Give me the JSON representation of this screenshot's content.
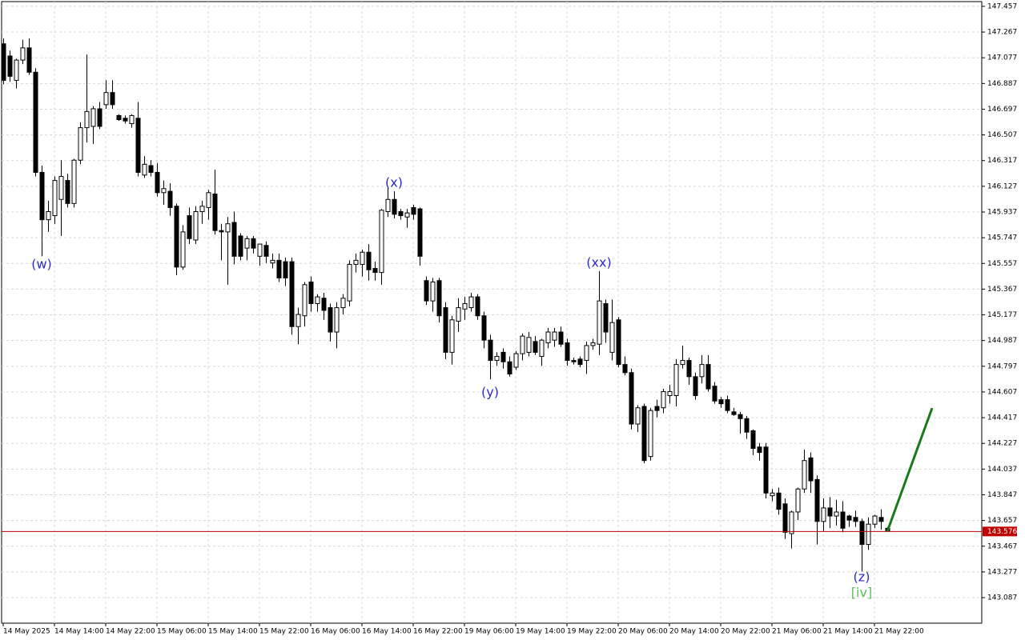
{
  "chart_data": {
    "type": "candlestick",
    "ylim": [
      142.898,
      147.492
    ],
    "yticks": [
      147.457,
      147.267,
      147.077,
      146.887,
      146.697,
      146.507,
      146.317,
      146.127,
      145.937,
      145.747,
      145.557,
      145.367,
      145.177,
      144.987,
      144.797,
      144.607,
      144.417,
      144.227,
      144.037,
      143.847,
      143.657,
      143.467,
      143.277,
      143.087
    ],
    "grid": true,
    "up_color": "#ffffff",
    "down_color": "#000000",
    "categories": [
      "14 May 2025",
      null,
      null,
      null,
      null,
      null,
      null,
      null,
      "14 May 14:00",
      null,
      null,
      null,
      null,
      null,
      null,
      null,
      "14 May 22:00",
      null,
      null,
      null,
      null,
      null,
      null,
      null,
      "15 May 06:00",
      null,
      null,
      null,
      null,
      null,
      null,
      null,
      "15 May 14:00",
      null,
      null,
      null,
      null,
      null,
      null,
      null,
      "15 May 22:00",
      null,
      null,
      null,
      null,
      null,
      null,
      null,
      "16 May 06:00",
      null,
      null,
      null,
      null,
      null,
      null,
      null,
      "16 May 14:00",
      null,
      null,
      null,
      null,
      null,
      null,
      null,
      "16 May 22:00",
      null,
      null,
      null,
      null,
      null,
      null,
      null,
      "19 May 06:00",
      null,
      null,
      null,
      null,
      null,
      null,
      null,
      "19 May 14:00",
      null,
      null,
      null,
      null,
      null,
      null,
      null,
      "19 May 22:00",
      null,
      null,
      null,
      null,
      null,
      null,
      null,
      "20 May 06:00",
      null,
      null,
      null,
      null,
      null,
      null,
      null,
      "20 May 14:00",
      null,
      null,
      null,
      null,
      null,
      null,
      null,
      "20 May 22:00",
      null,
      null,
      null,
      null,
      null,
      null,
      null,
      "21 May 06:00",
      null,
      null,
      null,
      null,
      null,
      null,
      null,
      "21 May 14:00",
      null,
      null,
      null,
      null,
      null,
      null,
      null,
      "21 May 22:00",
      null,
      null
    ],
    "values": [
      [
        147.18,
        147.22,
        146.88,
        146.91
      ],
      [
        147.09,
        147.13,
        146.9,
        146.94
      ],
      [
        146.91,
        147.07,
        146.85,
        147.06
      ],
      [
        147.06,
        147.21,
        147.03,
        147.15
      ],
      [
        147.15,
        147.22,
        146.95,
        146.97
      ],
      [
        146.97,
        147.0,
        146.2,
        146.23
      ],
      [
        146.23,
        146.28,
        145.61,
        145.88
      ],
      [
        145.88,
        146.02,
        145.79,
        145.94
      ],
      [
        145.91,
        146.2,
        145.85,
        146.17
      ],
      [
        146.03,
        146.32,
        145.76,
        146.2
      ],
      [
        146.17,
        146.22,
        145.97,
        146.0
      ],
      [
        146.0,
        146.33,
        145.97,
        146.32
      ],
      [
        146.32,
        146.6,
        146.29,
        146.56
      ],
      [
        146.56,
        147.1,
        146.45,
        146.68
      ],
      [
        146.57,
        146.72,
        146.44,
        146.7
      ],
      [
        146.7,
        146.75,
        146.55,
        146.57
      ],
      [
        146.73,
        146.91,
        146.7,
        146.82
      ],
      [
        146.82,
        146.91,
        146.7,
        146.73
      ],
      [
        146.65,
        146.66,
        146.61,
        146.62
      ],
      [
        146.63,
        146.65,
        146.59,
        146.61
      ],
      [
        146.59,
        146.66,
        146.56,
        146.65
      ],
      [
        146.63,
        146.75,
        146.2,
        146.23
      ],
      [
        146.21,
        146.35,
        146.19,
        146.29
      ],
      [
        146.28,
        146.32,
        146.2,
        146.23
      ],
      [
        146.23,
        146.3,
        146.05,
        146.08
      ],
      [
        146.08,
        146.17,
        145.99,
        146.11
      ],
      [
        146.09,
        146.15,
        145.91,
        145.97
      ],
      [
        145.98,
        146.0,
        145.47,
        145.53
      ],
      [
        145.53,
        145.84,
        145.51,
        145.79
      ],
      [
        145.91,
        145.97,
        145.7,
        145.74
      ],
      [
        145.73,
        145.98,
        145.7,
        145.94
      ],
      [
        145.94,
        146.02,
        145.85,
        145.98
      ],
      [
        145.97,
        146.1,
        145.88,
        146.08
      ],
      [
        146.07,
        146.25,
        145.77,
        145.8
      ],
      [
        145.8,
        145.85,
        145.58,
        145.79
      ],
      [
        145.79,
        145.9,
        145.4,
        145.85
      ],
      [
        145.86,
        145.94,
        145.55,
        145.61
      ],
      [
        145.76,
        145.78,
        145.58,
        145.61
      ],
      [
        145.67,
        145.76,
        145.58,
        145.74
      ],
      [
        145.74,
        145.76,
        145.63,
        145.67
      ],
      [
        145.61,
        145.7,
        145.54,
        145.7
      ],
      [
        145.69,
        145.72,
        145.56,
        145.61
      ],
      [
        145.56,
        145.63,
        145.52,
        145.58
      ],
      [
        145.58,
        145.63,
        145.42,
        145.45
      ],
      [
        145.57,
        145.6,
        145.39,
        145.45
      ],
      [
        145.57,
        145.6,
        145.03,
        145.09
      ],
      [
        145.09,
        145.23,
        144.96,
        145.18
      ],
      [
        145.17,
        145.42,
        145.09,
        145.4
      ],
      [
        145.42,
        145.46,
        145.2,
        145.26
      ],
      [
        145.26,
        145.33,
        145.2,
        145.31
      ],
      [
        145.3,
        145.34,
        145.14,
        145.21
      ],
      [
        145.23,
        145.26,
        144.98,
        145.05
      ],
      [
        145.05,
        145.27,
        144.93,
        145.23
      ],
      [
        145.23,
        145.33,
        145.18,
        145.3
      ],
      [
        145.28,
        145.58,
        145.24,
        145.55
      ],
      [
        145.55,
        145.63,
        145.49,
        145.58
      ],
      [
        145.55,
        145.66,
        145.46,
        145.64
      ],
      [
        145.64,
        145.7,
        145.43,
        145.51
      ],
      [
        145.52,
        145.57,
        145.43,
        145.49
      ],
      [
        145.49,
        145.96,
        145.4,
        145.95
      ],
      [
        145.94,
        146.12,
        145.9,
        146.03
      ],
      [
        146.03,
        146.09,
        145.89,
        145.92
      ],
      [
        145.94,
        145.96,
        145.88,
        145.91
      ],
      [
        145.9,
        145.96,
        145.82,
        145.93
      ],
      [
        145.97,
        145.99,
        145.88,
        145.92
      ],
      [
        145.96,
        145.97,
        145.54,
        145.61
      ],
      [
        145.43,
        145.46,
        145.25,
        145.28
      ],
      [
        145.28,
        145.45,
        145.2,
        145.42
      ],
      [
        145.43,
        145.45,
        145.12,
        145.17
      ],
      [
        145.23,
        145.27,
        144.85,
        144.9
      ],
      [
        144.9,
        145.17,
        144.81,
        145.14
      ],
      [
        145.13,
        145.3,
        145.05,
        145.23
      ],
      [
        145.22,
        145.31,
        145.14,
        145.26
      ],
      [
        145.23,
        145.34,
        145.2,
        145.31
      ],
      [
        145.31,
        145.33,
        145.14,
        145.17
      ],
      [
        145.17,
        145.2,
        144.93,
        144.99
      ],
      [
        144.99,
        145.03,
        144.7,
        144.84
      ],
      [
        144.84,
        144.9,
        144.8,
        144.87
      ],
      [
        144.9,
        144.93,
        144.78,
        144.83
      ],
      [
        144.83,
        144.87,
        144.72,
        144.74
      ],
      [
        144.79,
        144.91,
        144.77,
        144.89
      ],
      [
        144.89,
        145.04,
        144.84,
        145.02
      ],
      [
        144.9,
        145.05,
        144.87,
        145.01
      ],
      [
        144.98,
        145.02,
        144.88,
        144.9
      ],
      [
        144.87,
        145.0,
        144.8,
        144.99
      ],
      [
        144.97,
        145.08,
        144.93,
        145.05
      ],
      [
        144.99,
        145.08,
        144.94,
        145.05
      ],
      [
        145.05,
        145.09,
        144.94,
        144.96
      ],
      [
        144.97,
        145.0,
        144.8,
        144.84
      ],
      [
        144.84,
        144.86,
        144.81,
        144.83
      ],
      [
        144.85,
        144.87,
        144.79,
        144.81
      ],
      [
        144.84,
        144.98,
        144.74,
        144.95
      ],
      [
        144.95,
        145.0,
        144.92,
        144.97
      ],
      [
        144.96,
        145.5,
        144.88,
        145.28
      ],
      [
        145.26,
        145.29,
        144.97,
        145.05
      ],
      [
        144.9,
        145.29,
        144.84,
        145.12
      ],
      [
        145.14,
        145.16,
        144.79,
        144.81
      ],
      [
        144.81,
        144.87,
        144.73,
        144.75
      ],
      [
        144.75,
        144.78,
        144.33,
        144.37
      ],
      [
        144.37,
        144.51,
        144.31,
        144.49
      ],
      [
        144.5,
        144.52,
        144.08,
        144.1
      ],
      [
        144.13,
        144.49,
        144.1,
        144.47
      ],
      [
        144.5,
        144.55,
        144.42,
        144.47
      ],
      [
        144.49,
        144.63,
        144.45,
        144.61
      ],
      [
        144.58,
        144.66,
        144.52,
        144.61
      ],
      [
        144.58,
        144.85,
        144.5,
        144.81
      ],
      [
        144.81,
        144.95,
        144.78,
        144.84
      ],
      [
        144.84,
        144.86,
        144.66,
        144.72
      ],
      [
        144.72,
        144.75,
        144.55,
        144.58
      ],
      [
        144.72,
        144.88,
        144.67,
        144.81
      ],
      [
        144.81,
        144.88,
        144.61,
        144.63
      ],
      [
        144.65,
        144.68,
        144.52,
        144.54
      ],
      [
        144.55,
        144.57,
        144.49,
        144.52
      ],
      [
        144.55,
        144.58,
        144.45,
        144.47
      ],
      [
        144.46,
        144.49,
        144.43,
        144.44
      ],
      [
        144.44,
        144.46,
        144.3,
        144.41
      ],
      [
        144.41,
        144.43,
        144.26,
        144.31
      ],
      [
        144.32,
        144.33,
        144.14,
        144.19
      ],
      [
        144.2,
        144.23,
        144.1,
        144.16
      ],
      [
        144.2,
        144.23,
        143.82,
        143.86
      ],
      [
        143.84,
        143.89,
        143.8,
        143.86
      ],
      [
        143.86,
        143.9,
        143.7,
        143.74
      ],
      [
        143.78,
        143.82,
        143.52,
        143.57
      ],
      [
        143.56,
        143.73,
        143.45,
        143.72
      ],
      [
        143.72,
        143.9,
        143.66,
        143.89
      ],
      [
        143.89,
        144.18,
        143.86,
        144.1
      ],
      [
        144.12,
        144.16,
        143.86,
        143.95
      ],
      [
        143.96,
        143.99,
        143.48,
        143.65
      ],
      [
        143.65,
        143.82,
        143.58,
        143.75
      ],
      [
        143.75,
        143.83,
        143.6,
        143.69
      ],
      [
        143.69,
        143.81,
        143.62,
        143.72
      ],
      [
        143.72,
        143.8,
        143.57,
        143.6
      ],
      [
        143.69,
        143.7,
        143.61,
        143.66
      ],
      [
        143.68,
        143.73,
        143.61,
        143.65
      ],
      [
        143.65,
        143.67,
        143.28,
        143.48
      ],
      [
        143.48,
        143.68,
        143.44,
        143.63
      ],
      [
        143.63,
        143.7,
        143.6,
        143.69
      ],
      [
        143.68,
        143.74,
        143.59,
        143.65
      ],
      [
        143.6,
        143.61,
        143.58,
        143.58
      ]
    ],
    "current_price": {
      "value": 143.576,
      "color": "#c00000"
    },
    "forecast": {
      "x": [
        138,
        145
      ],
      "y": [
        143.576,
        144.488
      ],
      "color": "#1a7a1a"
    },
    "annotations": [
      {
        "text": "(w)",
        "x": 6,
        "y": 145.547,
        "color": "#2a2ad0"
      },
      {
        "text": "(x)",
        "x": 61,
        "y": 146.15,
        "color": "#2a2ad0"
      },
      {
        "text": "(y)",
        "x": 76,
        "y": 144.6,
        "color": "#2a2ad0"
      },
      {
        "text": "(xx)",
        "x": 93,
        "y": 145.56,
        "color": "#2a2ad0"
      },
      {
        "text": "(z)",
        "x": 134,
        "y": 143.235,
        "color": "#2a2ad0"
      },
      {
        "text": "[iv]",
        "x": 134,
        "y": 143.12,
        "color": "#5cc05c"
      }
    ]
  }
}
